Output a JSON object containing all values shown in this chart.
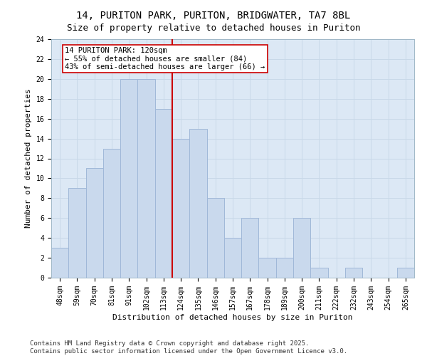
{
  "title_line1": "14, PURITON PARK, PURITON, BRIDGWATER, TA7 8BL",
  "title_line2": "Size of property relative to detached houses in Puriton",
  "xlabel": "Distribution of detached houses by size in Puriton",
  "ylabel": "Number of detached properties",
  "categories": [
    "48sqm",
    "59sqm",
    "70sqm",
    "81sqm",
    "91sqm",
    "102sqm",
    "113sqm",
    "124sqm",
    "135sqm",
    "146sqm",
    "157sqm",
    "167sqm",
    "178sqm",
    "189sqm",
    "200sqm",
    "211sqm",
    "222sqm",
    "232sqm",
    "243sqm",
    "254sqm",
    "265sqm"
  ],
  "values": [
    3,
    9,
    11,
    13,
    20,
    20,
    17,
    14,
    15,
    8,
    4,
    6,
    2,
    2,
    6,
    1,
    0,
    1,
    0,
    0,
    1
  ],
  "bar_color": "#c9d9ed",
  "bar_edge_color": "#a0b8d8",
  "marker_index": 7,
  "marker_color": "#cc0000",
  "annotation_text": "14 PURITON PARK: 120sqm\n← 55% of detached houses are smaller (84)\n43% of semi-detached houses are larger (66) →",
  "annotation_box_color": "#ffffff",
  "annotation_box_edge": "#cc0000",
  "ylim": [
    0,
    24
  ],
  "yticks": [
    0,
    2,
    4,
    6,
    8,
    10,
    12,
    14,
    16,
    18,
    20,
    22,
    24
  ],
  "grid_color": "#c8d8e8",
  "background_color": "#dce8f5",
  "footer_text": "Contains HM Land Registry data © Crown copyright and database right 2025.\nContains public sector information licensed under the Open Government Licence v3.0.",
  "title_fontsize": 10,
  "subtitle_fontsize": 9,
  "axis_label_fontsize": 8,
  "tick_fontsize": 7,
  "annotation_fontsize": 7.5,
  "footer_fontsize": 6.5
}
